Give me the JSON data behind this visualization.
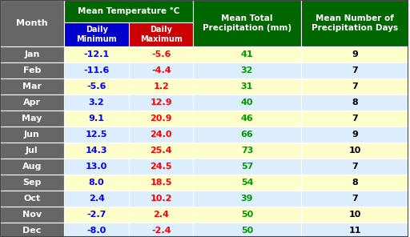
{
  "months": [
    "Jan",
    "Feb",
    "Mar",
    "Apr",
    "May",
    "Jun",
    "Jul",
    "Aug",
    "Sep",
    "Oct",
    "Nov",
    "Dec"
  ],
  "daily_min": [
    -12.1,
    -11.6,
    -5.6,
    3.2,
    9.1,
    12.5,
    14.3,
    13.0,
    8.0,
    2.4,
    -2.7,
    -8.0
  ],
  "daily_max": [
    -5.6,
    -4.4,
    1.2,
    12.9,
    20.9,
    24.0,
    25.4,
    24.5,
    18.5,
    10.2,
    2.4,
    -2.4
  ],
  "precipitation": [
    41,
    32,
    31,
    40,
    46,
    66,
    73,
    57,
    54,
    39,
    50,
    50
  ],
  "precip_days": [
    9,
    7,
    7,
    8,
    7,
    9,
    10,
    7,
    8,
    7,
    10,
    11
  ],
  "header_bg": "#006600",
  "subheader_min_bg": "#0000cc",
  "subheader_max_bg": "#cc0000",
  "month_col_bg": "#666666",
  "row_bg_light": "#ffffcc",
  "row_bg_blue": "#ddeeff",
  "min_color": "#0000ff",
  "max_color": "#ff0000",
  "precip_color": "#009900",
  "days_color": "#000000",
  "month_text_color": "#ffffff",
  "header_text_color": "#ffffff",
  "days_col_bg_light": "#ffffcc",
  "days_col_bg_blue": "#ddeeff"
}
